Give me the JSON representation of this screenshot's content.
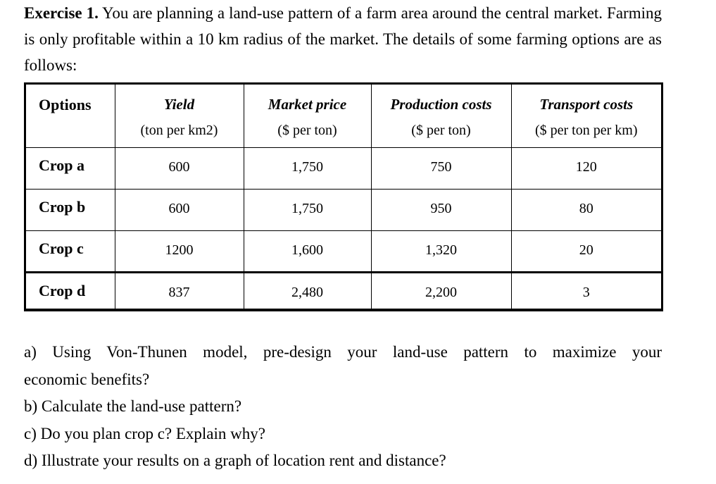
{
  "exercise": {
    "label": "Exercise 1.",
    "intro_text": "You are planning a land-use pattern of a farm area around the central market. Farming is only profitable within a 10 km radius of the market. The details of some farming options are as follows:"
  },
  "table": {
    "columns": [
      {
        "title": "Options",
        "unit": ""
      },
      {
        "title": "Yield",
        "unit": "(ton per km2)"
      },
      {
        "title": "Market price",
        "unit": "($ per ton)"
      },
      {
        "title": "Production costs",
        "unit": "($ per ton)"
      },
      {
        "title": "Transport costs",
        "unit": "($ per ton per km)"
      }
    ],
    "rows": [
      {
        "option": "Crop a",
        "yield": "600",
        "market_price": "1,750",
        "production_costs": "750",
        "transport_costs": "120"
      },
      {
        "option": "Crop b",
        "yield": "600",
        "market_price": "1,750",
        "production_costs": "950",
        "transport_costs": "80"
      },
      {
        "option": "Crop c",
        "yield": "1200",
        "market_price": "1,600",
        "production_costs": "1,320",
        "transport_costs": "20"
      },
      {
        "option": "Crop d",
        "yield": "837",
        "market_price": "2,480",
        "production_costs": "2,200",
        "transport_costs": "3"
      }
    ]
  },
  "questions": {
    "a_line1": "a) Using Von-Thunen model, pre-design your land-use pattern to maximize your",
    "a_line2": "economic benefits?",
    "b": "b) Calculate the land-use pattern?",
    "c": "c) Do you plan crop c? Explain why?",
    "d": "d) Illustrate your results on a graph of location rent and distance?"
  }
}
